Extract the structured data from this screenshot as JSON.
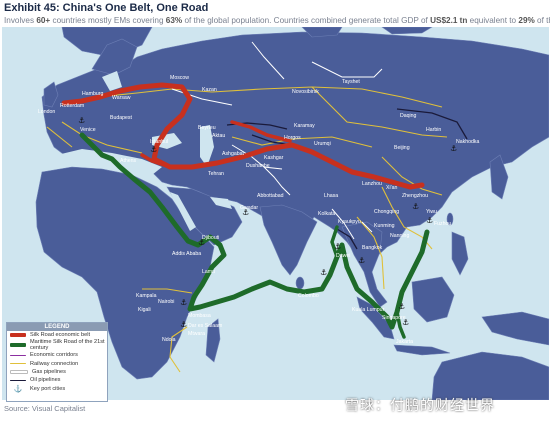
{
  "header": {
    "title": "Exhibit 45: China's One Belt, One Road",
    "subtitle_parts": [
      "Involves ",
      "60+",
      " countries mostly EMs covering ",
      "63%",
      " of the global population. Countries combined generate total GDP of ",
      "US$2.1 tn",
      " equivalent to ",
      "29%",
      " of the global economy"
    ]
  },
  "legend": {
    "title": "LEGEND",
    "items": [
      {
        "label": "Silk Road economic belt",
        "color": "#c8301e"
      },
      {
        "label": "Maritime Silk Road of the 21st century",
        "color": "#1e6b2a"
      },
      {
        "label": "Economic corridors",
        "color": "#8b2fa0"
      },
      {
        "label": "Railway connection",
        "color": "#e0c03a"
      },
      {
        "label": "Gas pipelines",
        "color": "#ffffff"
      },
      {
        "label": "Oil pipelines",
        "color": "#1a1a3a"
      },
      {
        "label": "Key port cities",
        "color": "#111111"
      }
    ]
  },
  "cities": {
    "london": "London",
    "rotterdam": "Rotterdam",
    "hamburg": "Hamburg",
    "warsaw": "Warsaw",
    "moscow": "Moscow",
    "kazan": "Kazan",
    "budapest": "Budapest",
    "venice": "Venice",
    "athens": "Athens",
    "istanbul": "Istanbul",
    "tehran": "Tehran",
    "beyneu": "Beyneu",
    "aktau": "Aktau",
    "atyrau": "Atyrau",
    "ashgabat": "Ashgabat",
    "horgos": "Horgos",
    "urumqi": "Urumqi",
    "kashgar": "Kashgar",
    "dushanbe": "Dushanbe",
    "turkmenbashi": "Turkmenbashi",
    "taishet": "Tayshet",
    "novosibirsk": "Novosibirsk",
    "daqing": "Daqing",
    "harbin": "Harbin",
    "nakhodka": "Nakhodka",
    "beijing": "Beijing",
    "lanzhou": "Lanzhou",
    "xian": "Xi'an",
    "zhengzhou": "Zhengzhou",
    "chongqing": "Chongqing",
    "lhasa": "Lhasa",
    "yiwu": "Yiwu",
    "fuzhou": "Fuzhou",
    "kunming": "Kunming",
    "nanning": "Nanning",
    "kolkata": "Kolkata",
    "gwadar": "Gwadar",
    "abbottabad": "Abbottabad",
    "karamay": "Karamay",
    "colombo": "Colombo",
    "kyaukpyu": "Kyaukpyu",
    "dawei": "Dawei",
    "bangkok": "Bangkok",
    "kuala_lumpur": "Kuala Lumpur",
    "singapore": "Singapore",
    "jakarta": "Jakarta",
    "addis_ababa": "Addis Ababa",
    "djibouti": "Djibouti",
    "mombasa": "Mombasa",
    "nairobi": "Nairobi",
    "kampala": "Kampala",
    "kigali": "Kigali",
    "dar_es_salaam": "Dar es Salaam",
    "mtwara": "Mtwara",
    "ndola": "Ndola",
    "lamu": "Lamu"
  },
  "footer": {
    "source": "Source: Visual Capitalist",
    "watermark": "雪球：付鹏的财经世界"
  },
  "colors": {
    "ocean": "#cfe5ef",
    "land": "#4a5d99",
    "silk_road": "#c8301e",
    "maritime": "#1e6b2a",
    "railway": "#e0c03a",
    "gas": "#ffffff",
    "oil": "#1a1a3a"
  }
}
